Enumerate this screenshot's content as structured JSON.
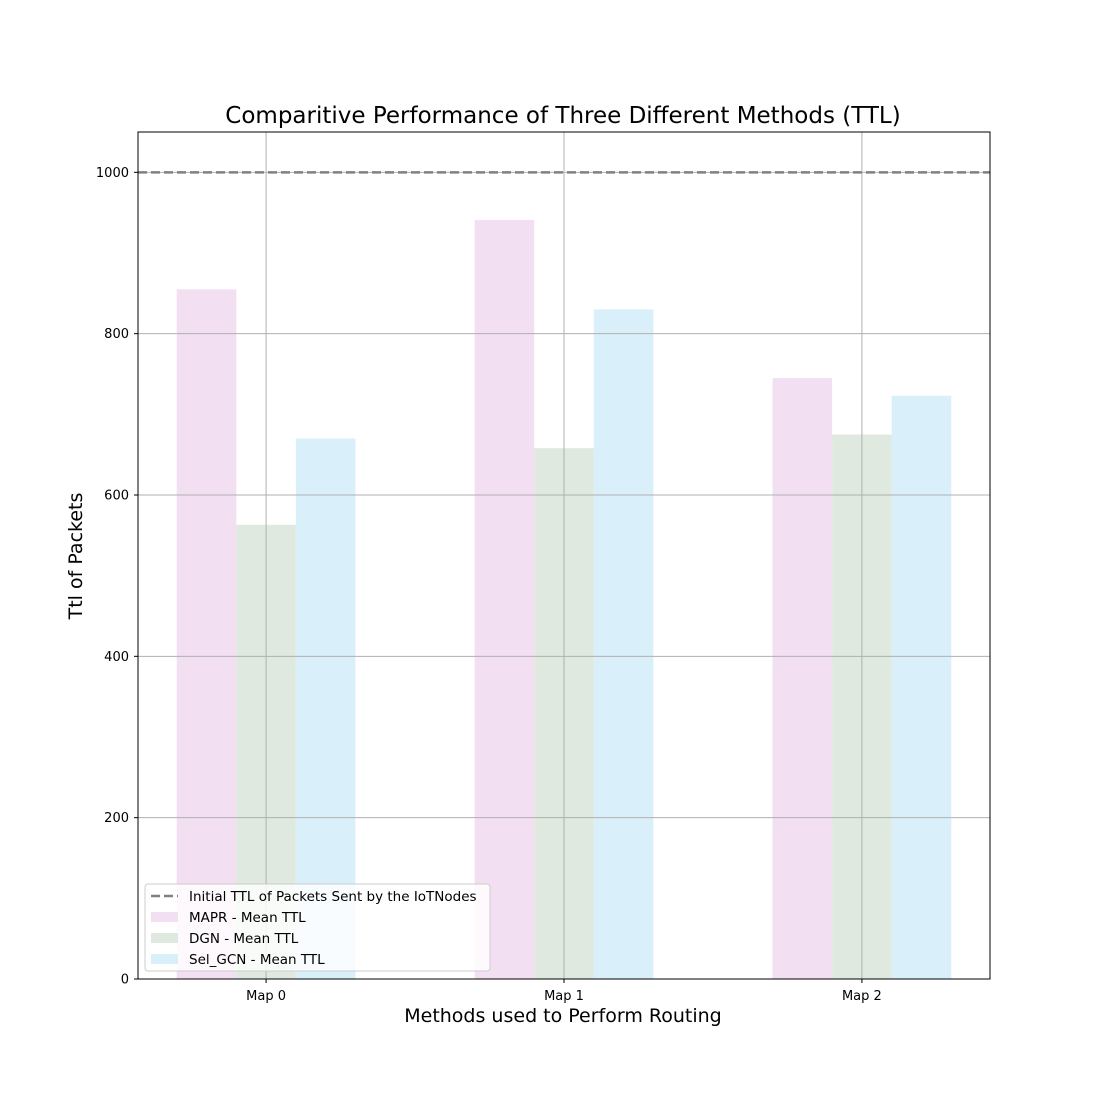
{
  "chart_data": {
    "type": "bar",
    "title": "Comparitive Performance of Three Different Methods (TTL)",
    "xlabel": "Methods used to Perform Routing",
    "ylabel": "Ttl of Packets",
    "categories": [
      "Map 0",
      "Map 1",
      "Map 2"
    ],
    "series": [
      {
        "name": "MAPR - Mean TTL",
        "values": [
          855,
          941,
          745
        ],
        "color": "#f3dff2"
      },
      {
        "name": "DGN - Mean TTL",
        "values": [
          563,
          658,
          675
        ],
        "color": "#dfe9df"
      },
      {
        "name": "Sel_GCN - Mean TTL",
        "values": [
          670,
          830,
          723
        ],
        "color": "#d9effa"
      }
    ],
    "reference_line": {
      "name": "Initial TTL of Packets Sent by the IoTNodes",
      "value": 1000,
      "color": "#808080",
      "style": "dashed"
    },
    "ylim": [
      0,
      1050
    ],
    "yticks": [
      0,
      200,
      400,
      600,
      800,
      1000
    ],
    "grid": true,
    "legend_position": "lower-left"
  }
}
